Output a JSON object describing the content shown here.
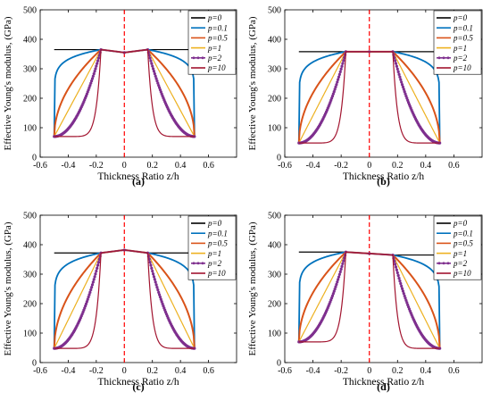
{
  "chart_data": [
    {
      "type": "line",
      "panel_label": "(a)",
      "xlabel": "Thickness Ratio z/h",
      "ylabel": "Effective Young's modulus, (GPa)",
      "xlim": [
        -0.6,
        0.8
      ],
      "ylim": [
        0,
        500
      ],
      "xticks": [
        -0.6,
        -0.4,
        -0.2,
        0,
        0.2,
        0.4,
        0.6
      ],
      "xtick_labels": [
        "-0.6",
        "-0.4",
        "-0.2",
        "0",
        "0.2",
        "0.4",
        "0.6"
      ],
      "yticks": [
        0,
        100,
        200,
        300,
        400,
        500
      ],
      "ytick_labels": [
        "0",
        "100",
        "200",
        "300",
        "400",
        "500"
      ],
      "grid": false,
      "legend_position": "top-right",
      "reference_line": {
        "x": 0,
        "color": "#ff0000",
        "style": "dashed"
      },
      "layer_bounds": [
        -0.5,
        -0.1667,
        0.1667,
        0.5
      ],
      "core_values": [
        365,
        355,
        365
      ],
      "outer_values": [
        70,
        70
      ],
      "series": [
        {
          "name": "p=0",
          "exponent": 0,
          "color": "#000000",
          "outer_values": [
            380,
            380
          ]
        },
        {
          "name": "p=0.1",
          "exponent": 0.1,
          "color": "#0072bd"
        },
        {
          "name": "p=0.5",
          "exponent": 0.5,
          "color": "#d95319"
        },
        {
          "name": "p=1",
          "exponent": 1,
          "color": "#edb120"
        },
        {
          "name": "p=2",
          "exponent": 2,
          "color": "#7e2f8e",
          "markers": true
        },
        {
          "name": "p=10",
          "exponent": 10,
          "color": "#a2142f"
        }
      ]
    },
    {
      "type": "line",
      "panel_label": "(b)",
      "xlabel": "Thickness Ratio z/h",
      "ylabel": "Effective Young's modulus, (GPa)",
      "xlim": [
        -0.6,
        0.8
      ],
      "ylim": [
        0,
        500
      ],
      "xticks": [
        -0.6,
        -0.4,
        -0.2,
        0,
        0.2,
        0.4,
        0.6
      ],
      "xtick_labels": [
        "-0.6",
        "-0.4",
        "-0.2",
        "0",
        "0.2",
        "0.4",
        "0.6"
      ],
      "yticks": [
        0,
        100,
        200,
        300,
        400,
        500
      ],
      "ytick_labels": [
        "0",
        "100",
        "200",
        "300",
        "400",
        "500"
      ],
      "grid": false,
      "legend_position": "top-right",
      "reference_line": {
        "x": 0,
        "color": "#ff0000",
        "style": "dashed"
      },
      "layer_bounds": [
        -0.5,
        -0.1667,
        0.1667,
        0.5
      ],
      "core_values": [
        358,
        358,
        358
      ],
      "outer_values": [
        48,
        48
      ],
      "series": [
        {
          "name": "p=0",
          "exponent": 0,
          "color": "#000000",
          "outer_values": [
            358,
            358
          ]
        },
        {
          "name": "p=0.1",
          "exponent": 0.1,
          "color": "#0072bd"
        },
        {
          "name": "p=0.5",
          "exponent": 0.5,
          "color": "#d95319"
        },
        {
          "name": "p=1",
          "exponent": 1,
          "color": "#edb120"
        },
        {
          "name": "p=2",
          "exponent": 2,
          "color": "#7e2f8e",
          "markers": true
        },
        {
          "name": "p=10",
          "exponent": 10,
          "color": "#a2142f"
        }
      ]
    },
    {
      "type": "line",
      "panel_label": "(c)",
      "xlabel": "Thickness Ratio z/h",
      "ylabel": "Effective Young's modulus, (GPa)",
      "xlim": [
        -0.6,
        0.8
      ],
      "ylim": [
        0,
        500
      ],
      "xticks": [
        -0.6,
        -0.4,
        -0.2,
        0,
        0.2,
        0.4,
        0.6
      ],
      "xtick_labels": [
        "-0.6",
        "-0.4",
        "-0.2",
        "0",
        "0.2",
        "0.4",
        "0.6"
      ],
      "yticks": [
        0,
        100,
        200,
        300,
        400,
        500
      ],
      "ytick_labels": [
        "0",
        "100",
        "200",
        "300",
        "400",
        "500"
      ],
      "grid": false,
      "legend_position": "top-right",
      "reference_line": {
        "x": 0,
        "color": "#ff0000",
        "style": "dashed"
      },
      "layer_bounds": [
        -0.5,
        -0.1667,
        0.1667,
        0.5
      ],
      "core_values": [
        372,
        382,
        372
      ],
      "outer_values": [
        48,
        48
      ],
      "series": [
        {
          "name": "p=0",
          "exponent": 0,
          "color": "#000000",
          "outer_values": [
            358,
            358
          ]
        },
        {
          "name": "p=0.1",
          "exponent": 0.1,
          "color": "#0072bd"
        },
        {
          "name": "p=0.5",
          "exponent": 0.5,
          "color": "#d95319"
        },
        {
          "name": "p=1",
          "exponent": 1,
          "color": "#edb120"
        },
        {
          "name": "p=2",
          "exponent": 2,
          "color": "#7e2f8e",
          "markers": true
        },
        {
          "name": "p=10",
          "exponent": 10,
          "color": "#a2142f"
        }
      ]
    },
    {
      "type": "line",
      "panel_label": "(d)",
      "xlabel": "Thickness Ratio z/h",
      "ylabel": "Effective Young's modulus, (GPa)",
      "xlim": [
        -0.6,
        0.8
      ],
      "ylim": [
        0,
        500
      ],
      "xticks": [
        -0.6,
        -0.4,
        -0.2,
        0,
        0.2,
        0.4,
        0.6
      ],
      "xtick_labels": [
        "-0.6",
        "-0.4",
        "-0.2",
        "0",
        "0.2",
        "0.4",
        "0.6"
      ],
      "yticks": [
        0,
        100,
        200,
        300,
        400,
        500
      ],
      "ytick_labels": [
        "0",
        "100",
        "200",
        "300",
        "400",
        "500"
      ],
      "grid": false,
      "legend_position": "top-right",
      "reference_line": {
        "x": 0,
        "color": "#ff0000",
        "style": "dashed"
      },
      "layer_bounds": [
        -0.5,
        -0.1667,
        0.1667,
        0.5
      ],
      "core_values": [
        375,
        370,
        365
      ],
      "outer_values": [
        70,
        48
      ],
      "series": [
        {
          "name": "p=0",
          "exponent": 0,
          "color": "#000000",
          "outer_values": [
            380,
            358
          ]
        },
        {
          "name": "p=0.1",
          "exponent": 0.1,
          "color": "#0072bd"
        },
        {
          "name": "p=0.5",
          "exponent": 0.5,
          "color": "#d95319"
        },
        {
          "name": "p=1",
          "exponent": 1,
          "color": "#edb120"
        },
        {
          "name": "p=2",
          "exponent": 2,
          "color": "#7e2f8e",
          "markers": true
        },
        {
          "name": "p=10",
          "exponent": 10,
          "color": "#a2142f"
        }
      ]
    }
  ]
}
